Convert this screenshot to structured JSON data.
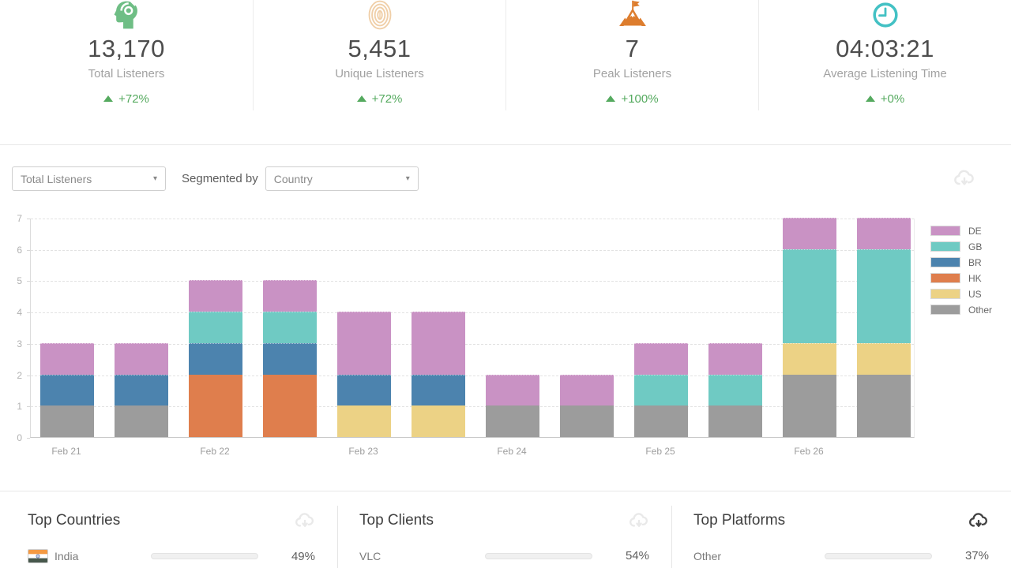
{
  "stat_cards": [
    {
      "icon": "listener-head-icon",
      "icon_color": "#6fbe85",
      "value": "13,170",
      "label": "Total Listeners",
      "delta": "+72%"
    },
    {
      "icon": "fingerprint-icon",
      "icon_color": "#f0cfa8",
      "value": "5,451",
      "label": "Unique Listeners",
      "delta": "+72%"
    },
    {
      "icon": "mountain-flag-icon",
      "icon_color": "#dd7d2e",
      "value": "7",
      "label": "Peak Listeners",
      "delta": "+100%"
    },
    {
      "icon": "clock-icon",
      "icon_color": "#43c1c4",
      "value": "04:03:21",
      "label": "Average Listening Time",
      "delta": "+0%"
    }
  ],
  "delta_color": "#55aa5f",
  "controls": {
    "metric_selected": "Total Listeners",
    "segmented_by_label": "Segmented by",
    "segment_selected": "Country"
  },
  "chart_data": {
    "type": "bar",
    "stacked": true,
    "title": "",
    "xlabel": "",
    "ylabel": "",
    "x_tick_labels": [
      "Feb 21",
      "Feb 22",
      "Feb 23",
      "Feb 24",
      "Feb 25",
      "Feb 26"
    ],
    "bars_per_day": 2,
    "ylim": [
      0,
      7
    ],
    "yticks": [
      0,
      1,
      2,
      3,
      4,
      5,
      6,
      7
    ],
    "grid": "dashed-horizontal",
    "legend_position": "right",
    "stack_order_bottom_to_top": [
      "Other",
      "US",
      "HK",
      "BR",
      "GB",
      "DE"
    ],
    "series": [
      {
        "name": "DE",
        "color": "#c992c4",
        "values": [
          1,
          1,
          1,
          1,
          2,
          2,
          1,
          1,
          1,
          1,
          1,
          1
        ]
      },
      {
        "name": "GB",
        "color": "#6fcac3",
        "values": [
          0,
          0,
          1,
          1,
          0,
          0,
          0,
          0,
          1,
          1,
          3,
          3
        ]
      },
      {
        "name": "BR",
        "color": "#4c83ae",
        "values": [
          1,
          1,
          1,
          1,
          1,
          1,
          0,
          0,
          0,
          0,
          0,
          0
        ]
      },
      {
        "name": "HK",
        "color": "#df7e4d",
        "values": [
          0,
          0,
          2,
          2,
          0,
          0,
          0,
          0,
          0,
          0,
          0,
          0
        ]
      },
      {
        "name": "US",
        "color": "#ecd285",
        "values": [
          0,
          0,
          0,
          0,
          1,
          1,
          0,
          0,
          0,
          0,
          1,
          1
        ]
      },
      {
        "name": "Other",
        "color": "#9c9c9c",
        "values": [
          1,
          1,
          0,
          0,
          0,
          0,
          1,
          1,
          1,
          1,
          2,
          2
        ]
      }
    ],
    "bar_totals": [
      3,
      3,
      5,
      5,
      4,
      4,
      2,
      2,
      3,
      3,
      7,
      7
    ]
  },
  "progress_fill_color": "#c58fc0",
  "bottom_panels": [
    {
      "title": "Top Countries",
      "export_style": "light",
      "rows": [
        {
          "label": "India",
          "flag": "india-flag-icon",
          "percent": 49,
          "percent_text": "49%"
        }
      ]
    },
    {
      "title": "Top Clients",
      "export_style": "light",
      "rows": [
        {
          "label": "VLC",
          "percent": 54,
          "percent_text": "54%"
        }
      ]
    },
    {
      "title": "Top Platforms",
      "export_style": "dark",
      "rows": [
        {
          "label": "Other",
          "percent": 37,
          "percent_text": "37%"
        }
      ]
    }
  ]
}
